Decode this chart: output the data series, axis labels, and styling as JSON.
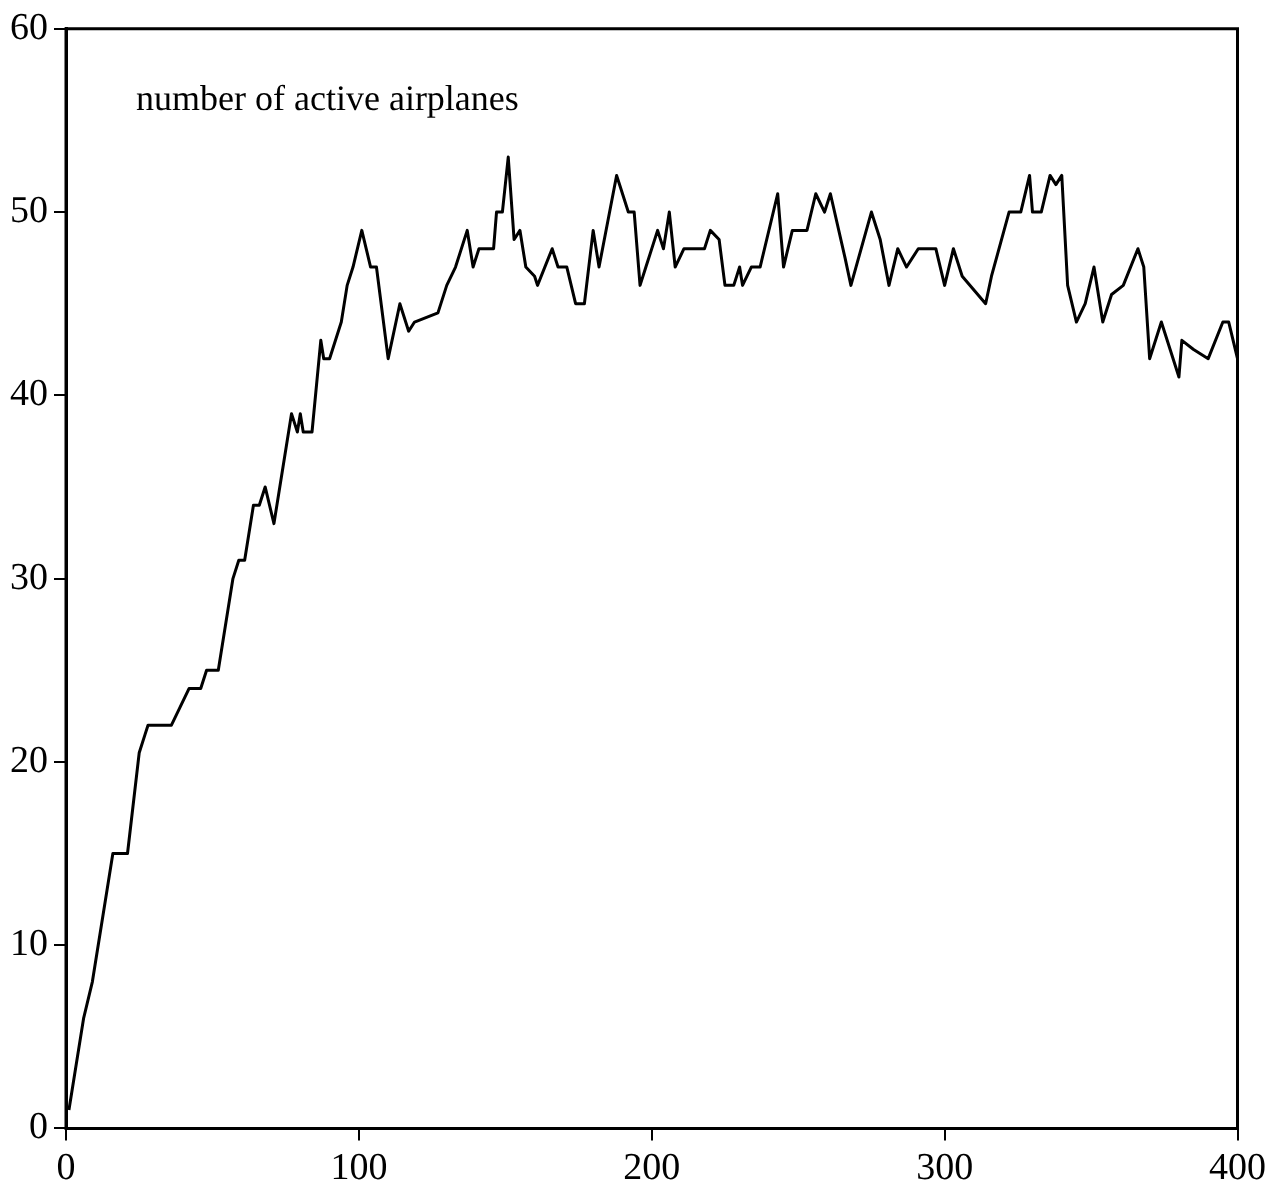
{
  "chart_data": {
    "type": "line",
    "annotations": [
      "number of active airplanes"
    ],
    "x": [
      1,
      6,
      9,
      14,
      16,
      21,
      25,
      27,
      28,
      36,
      39,
      42,
      46,
      48,
      52,
      57,
      59,
      61,
      64,
      66,
      68,
      71,
      73,
      77,
      79,
      80,
      81,
      84,
      87,
      88,
      90,
      94,
      96,
      98,
      101,
      104,
      106,
      110,
      114,
      117,
      119,
      127,
      130,
      133,
      137,
      139,
      141,
      146,
      147,
      149,
      151,
      153,
      155,
      157,
      160,
      161,
      166,
      168,
      171,
      174,
      177,
      180,
      182,
      188,
      189,
      192,
      194,
      196,
      198,
      202,
      204,
      206,
      208,
      211,
      218,
      220,
      223,
      225,
      228,
      230,
      231,
      234,
      237,
      243,
      245,
      248,
      253,
      256,
      259,
      261,
      266,
      268,
      275,
      278,
      281,
      284,
      287,
      291,
      297,
      300,
      303,
      306,
      314,
      316,
      322,
      326,
      329,
      330,
      333,
      336,
      338,
      340,
      342,
      345,
      348,
      351,
      354,
      357,
      361,
      366,
      368,
      370,
      374,
      377,
      380,
      381,
      385,
      390,
      395,
      397,
      400
    ],
    "series": [
      {
        "color": "#000000",
        "values": [
          1,
          6,
          8,
          13,
          15,
          15,
          20.5,
          21.5,
          22,
          22,
          23,
          24,
          24,
          25,
          25,
          30,
          31,
          31,
          34,
          34,
          35,
          33,
          35,
          39,
          38,
          39,
          38,
          38,
          43,
          42,
          42,
          44,
          46,
          47,
          49,
          47,
          47,
          42,
          45,
          43.5,
          44,
          44.5,
          46,
          47,
          49,
          47,
          48,
          48,
          50,
          50,
          53,
          48.5,
          49,
          47,
          46.5,
          46,
          48,
          47,
          47,
          45,
          45,
          49,
          47,
          52,
          51.5,
          50,
          50,
          46,
          47,
          49,
          48,
          50,
          47,
          48,
          48,
          49,
          48.5,
          46,
          46,
          47,
          46,
          47,
          47,
          51,
          47,
          49,
          49,
          51,
          50,
          51,
          47.5,
          46,
          50,
          48.5,
          46,
          48,
          47,
          48,
          48,
          46,
          48,
          46.5,
          45,
          46.5,
          50,
          50,
          52,
          50,
          50,
          52,
          51.5,
          52,
          46,
          44,
          45,
          47,
          44,
          45.5,
          46,
          48,
          47,
          42,
          44,
          42.5,
          41,
          43,
          42.5,
          42,
          44,
          44,
          42
        ]
      }
    ],
    "xlim": [
      0,
      400
    ],
    "xticks": [
      0,
      100,
      200,
      300,
      400
    ],
    "ylim": [
      0,
      60
    ],
    "yticks": [
      0,
      10,
      20,
      30,
      40,
      50,
      60
    ],
    "grid": false,
    "legend": false,
    "marker": "none",
    "line_style": "solid"
  }
}
